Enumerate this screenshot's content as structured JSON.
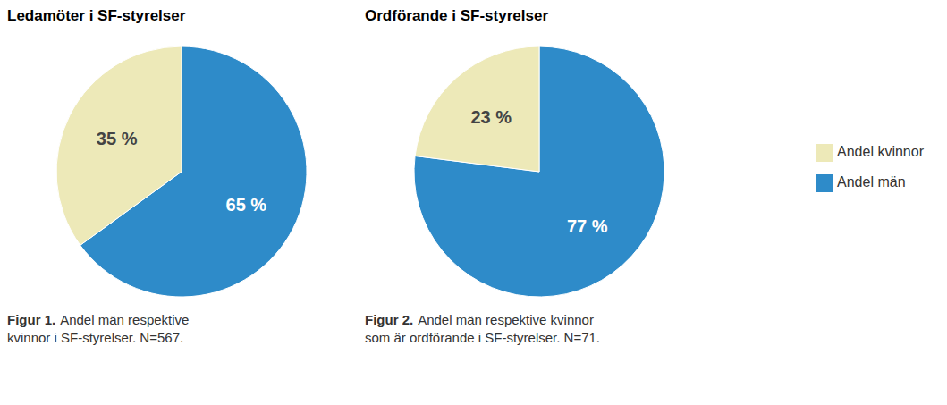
{
  "chart_data": [
    {
      "type": "pie",
      "title": "Ledamöter i SF-styrelser",
      "categories": [
        "Andel män",
        "Andel kvinnor"
      ],
      "values": [
        65,
        35
      ],
      "value_labels": [
        "65 %",
        "35 %"
      ],
      "colors": [
        "#2e8bc9",
        "#ede9b8"
      ],
      "data_labels": true,
      "caption_label": "Figur 1.",
      "caption": "Andel män respektive\nkvinnor i SF-styrelser. N=567."
    },
    {
      "type": "pie",
      "title": "Ordförande i SF-styrelser",
      "categories": [
        "Andel män",
        "Andel kvinnor"
      ],
      "values": [
        77,
        23
      ],
      "value_labels": [
        "77 %",
        "23 %"
      ],
      "colors": [
        "#2e8bc9",
        "#ede9b8"
      ],
      "data_labels": true,
      "legend": "right",
      "caption_label": "Figur 2.",
      "caption": "Andel män respektive kvinnor\nsom är ordförande i SF-styrelser. N=71."
    }
  ]
}
